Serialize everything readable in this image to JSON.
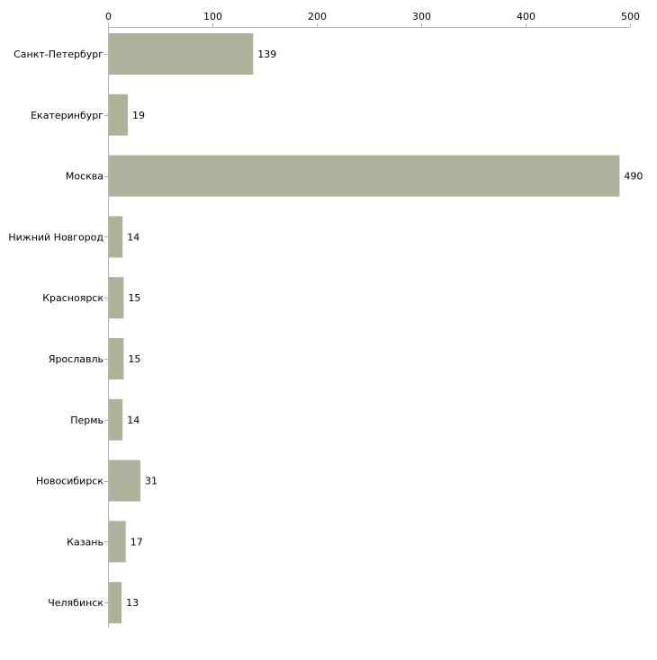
{
  "chart_data": {
    "type": "bar",
    "orientation": "horizontal",
    "title": "",
    "xlabel": "",
    "ylabel": "",
    "xlim": [
      0,
      500
    ],
    "x_ticks": [
      0,
      100,
      200,
      300,
      400,
      500
    ],
    "x_tick_labels": [
      "0",
      "100",
      "200",
      "300",
      "400",
      "500"
    ],
    "x_axis_position": "top",
    "grid": false,
    "legend": "none",
    "categories": [
      "Санкт-Петербург",
      "Екатеринбург",
      "Москва",
      "Нижний Новгород",
      "Красноярск",
      "Ярославль",
      "Пермь",
      "Новосибирск",
      "Казань",
      "Челябинск"
    ],
    "values": [
      139,
      19,
      490,
      14,
      15,
      15,
      14,
      31,
      17,
      13
    ],
    "value_labels": [
      "139",
      "19",
      "490",
      "14",
      "15",
      "15",
      "14",
      "31",
      "17",
      "13"
    ],
    "bar_color": "#adb39a",
    "axis_color": "#b3b3b3"
  }
}
